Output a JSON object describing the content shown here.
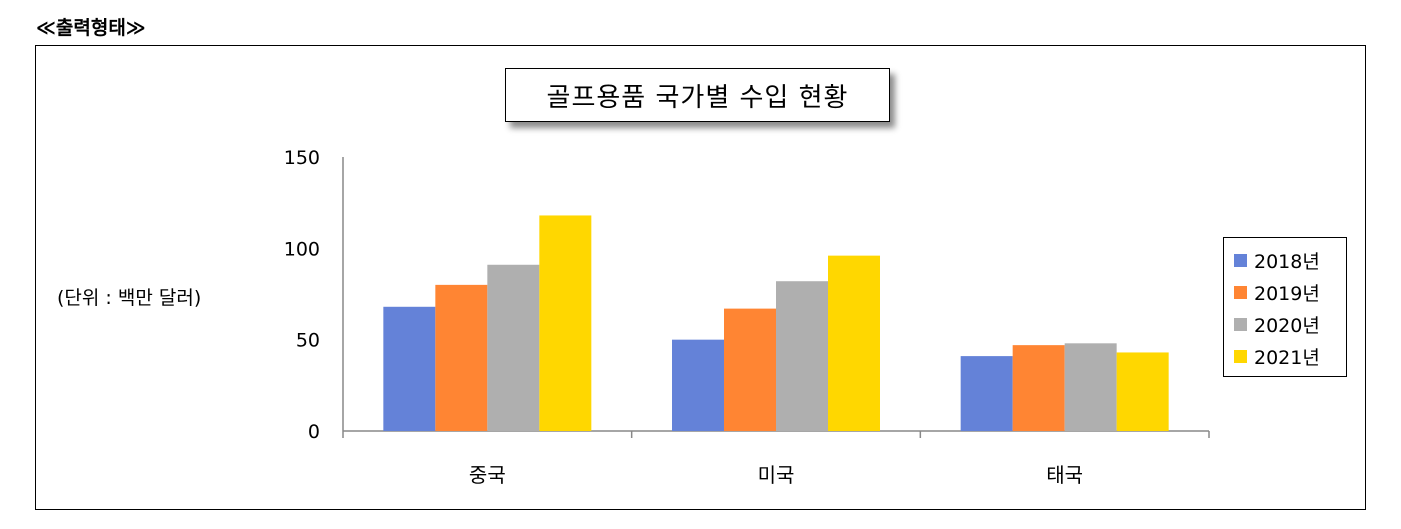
{
  "heading": "≪출력형태≫",
  "unit_label": "(단위 : 백만 달러)",
  "chart_data": {
    "type": "bar",
    "title": "골프용품 국가별 수입 현황",
    "categories": [
      "중국",
      "미국",
      "태국"
    ],
    "series": [
      {
        "name": "2018년",
        "color": "#6482D8",
        "values": [
          68,
          50,
          41
        ]
      },
      {
        "name": "2019년",
        "color": "#FF8533",
        "values": [
          80,
          67,
          47
        ]
      },
      {
        "name": "2020년",
        "color": "#AFAFAF",
        "values": [
          91,
          82,
          48
        ]
      },
      {
        "name": "2021년",
        "color": "#FFD700",
        "values": [
          118,
          96,
          43
        ]
      }
    ],
    "ylim": [
      0,
      150
    ],
    "yticks": [
      "0",
      "50",
      "100",
      "150"
    ],
    "legend_position": "right",
    "grid": false
  }
}
